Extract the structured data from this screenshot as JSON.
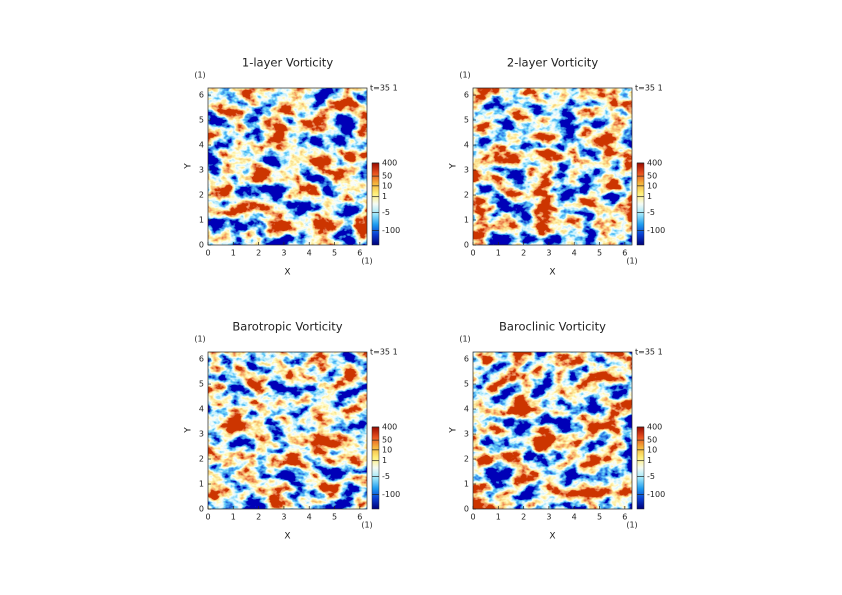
{
  "colormap": [
    "#00007a",
    "#0a3cd0",
    "#1e9cf0",
    "#9ce6fa",
    "#f5fbf5",
    "#fff07a",
    "#f5b43c",
    "#e8501e",
    "#9a0a00"
  ],
  "chart_data": [
    {
      "type": "heatmap",
      "title": "1-layer Vorticity",
      "xlabel": "X",
      "ylabel": "Y",
      "x_unit": "(1)",
      "y_unit": "(1)",
      "time_label": "t=35 1",
      "xlim": [
        0,
        6.283
      ],
      "ylim": [
        0,
        6.283
      ],
      "xticks": [
        0,
        1,
        2,
        3,
        4,
        5,
        6
      ],
      "yticks": [
        0,
        1,
        2,
        3,
        4,
        5,
        6
      ],
      "colorbar_lim": [
        -1000,
        400
      ],
      "colorbar_ticks": [
        400,
        50,
        10,
        1,
        -5,
        -100
      ],
      "seed": 3
    },
    {
      "type": "heatmap",
      "title": "2-layer Vorticity",
      "xlabel": "X",
      "ylabel": "Y",
      "x_unit": "(1)",
      "y_unit": "(1)",
      "time_label": "t=35 1",
      "xlim": [
        0,
        6.283
      ],
      "ylim": [
        0,
        6.283
      ],
      "xticks": [
        0,
        1,
        2,
        3,
        4,
        5,
        6
      ],
      "yticks": [
        0,
        1,
        2,
        3,
        4,
        5,
        6
      ],
      "colorbar_lim": [
        -1000,
        400
      ],
      "colorbar_ticks": [
        400,
        50,
        10,
        1,
        -5,
        -100
      ],
      "seed": 11
    },
    {
      "type": "heatmap",
      "title": "Barotropic Vorticity",
      "xlabel": "X",
      "ylabel": "Y",
      "x_unit": "(1)",
      "y_unit": "(1)",
      "time_label": "t=35 1",
      "xlim": [
        0,
        6.283
      ],
      "ylim": [
        0,
        6.283
      ],
      "xticks": [
        0,
        1,
        2,
        3,
        4,
        5,
        6
      ],
      "yticks": [
        0,
        1,
        2,
        3,
        4,
        5,
        6
      ],
      "colorbar_lim": [
        -1000,
        400
      ],
      "colorbar_ticks": [
        400,
        50,
        10,
        1,
        -5,
        -100
      ],
      "seed": 27
    },
    {
      "type": "heatmap",
      "title": "Baroclinic Vorticity",
      "xlabel": "X",
      "ylabel": "Y",
      "x_unit": "(1)",
      "y_unit": "(1)",
      "time_label": "t=35 1",
      "xlim": [
        0,
        6.283
      ],
      "ylim": [
        0,
        6.283
      ],
      "xticks": [
        0,
        1,
        2,
        3,
        4,
        5,
        6
      ],
      "yticks": [
        0,
        1,
        2,
        3,
        4,
        5,
        6
      ],
      "colorbar_lim": [
        -1000,
        400
      ],
      "colorbar_ticks": [
        400,
        50,
        10,
        1,
        -5,
        -100
      ],
      "seed": 42
    }
  ]
}
